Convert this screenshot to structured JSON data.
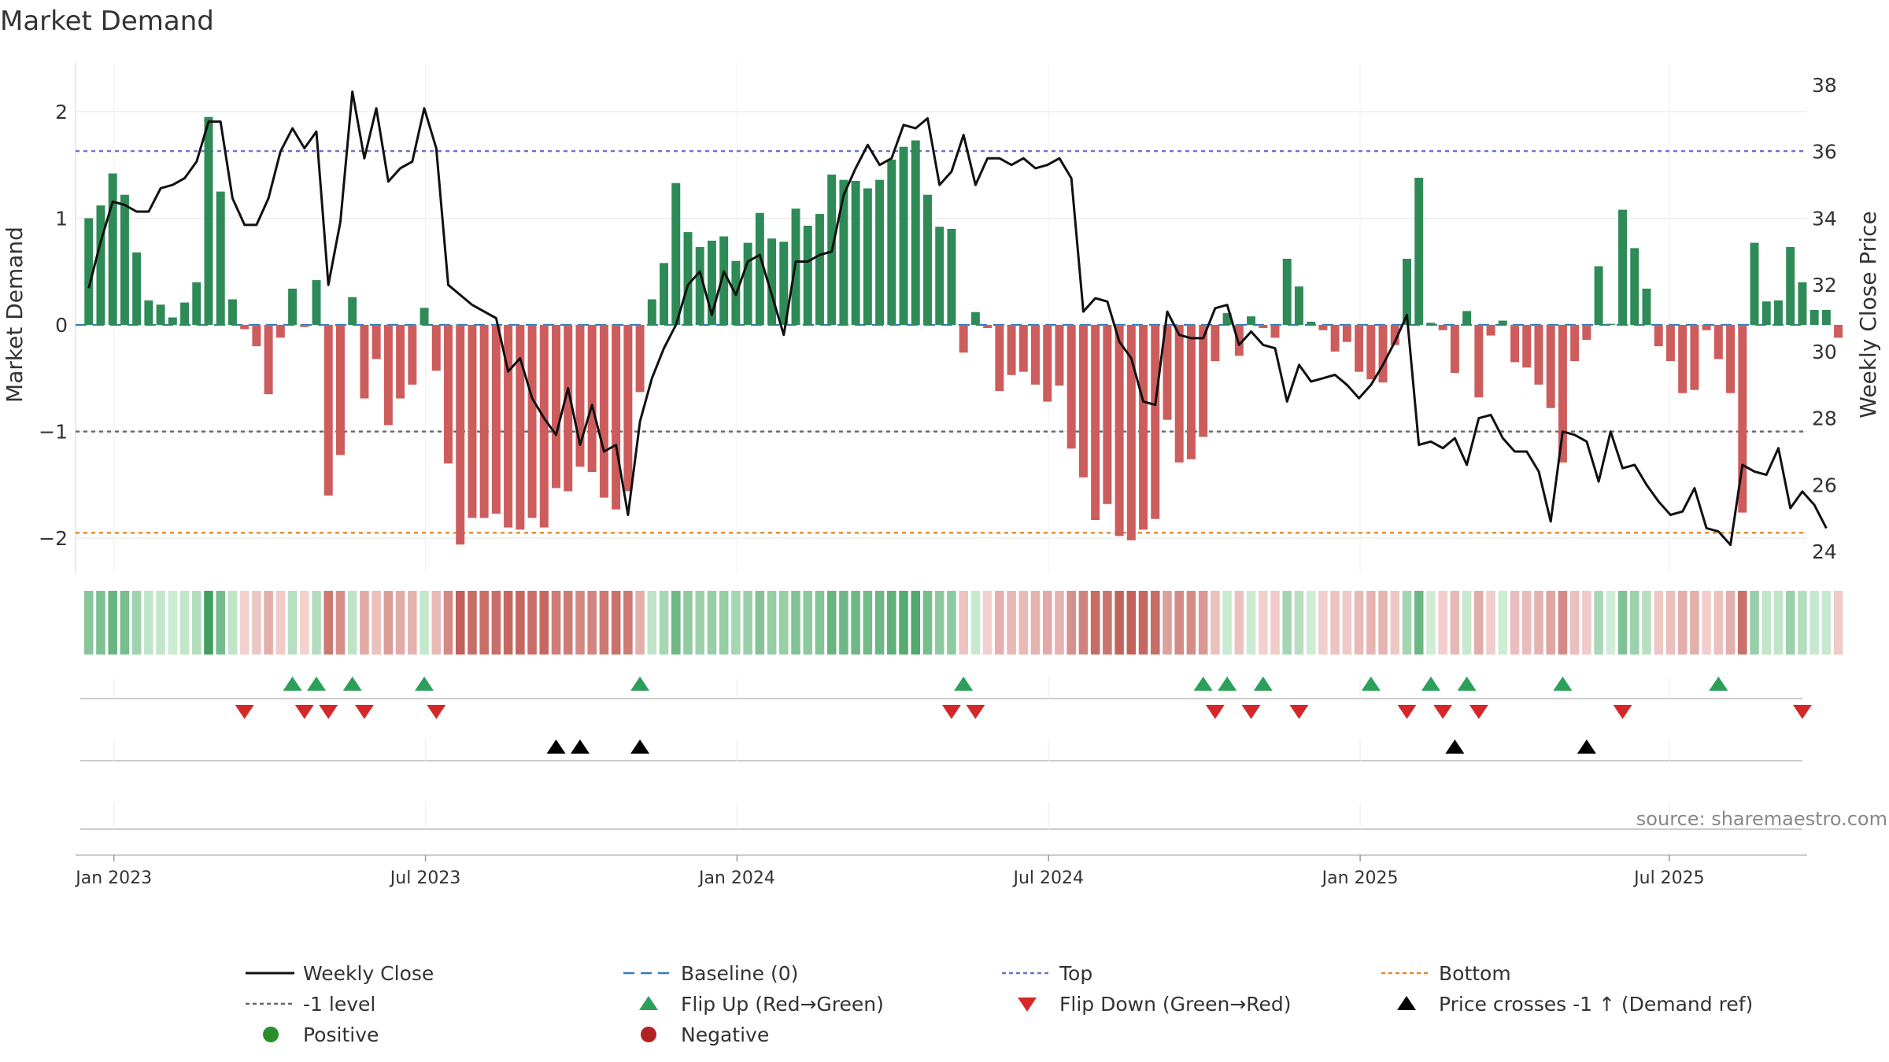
{
  "chart_data": {
    "type": "bar",
    "title": "Market Demand",
    "ylabel": "Market Demand",
    "y2label": "Weekly Close Price",
    "ylim": [
      -2.25,
      2.25
    ],
    "y2lim": [
      23.6,
      38.0
    ],
    "yticks": [
      2,
      1,
      0,
      -1,
      -2
    ],
    "yticklabels": [
      "2",
      "1",
      "0",
      "−1",
      "−2"
    ],
    "y2ticks": [
      38,
      36,
      34,
      32,
      30,
      28,
      26,
      24
    ],
    "y2ticklabels": [
      "38",
      "36",
      "34",
      "32",
      "30",
      "28",
      "26",
      "24"
    ],
    "x_week_range": [
      -1.1,
      143.4
    ],
    "xtick_weeks": [
      2.1,
      28.1,
      54.1,
      80.1,
      106.1,
      131.9
    ],
    "xticklabels": [
      "Jan 2023",
      "Jul 2023",
      "Jan 2024",
      "Jul 2024",
      "Jan 2025",
      "Jul 2025"
    ],
    "levels": {
      "top": 1.63,
      "minus_one": -1.0,
      "bottom": -1.95,
      "baseline": 0
    },
    "series": [
      {
        "name": "Market Demand",
        "type": "bar",
        "values": [
          1.0,
          1.12,
          1.42,
          1.22,
          0.68,
          0.23,
          0.19,
          0.07,
          0.21,
          0.4,
          1.95,
          1.25,
          0.24,
          -0.04,
          -0.2,
          -0.65,
          -0.12,
          0.34,
          -0.02,
          0.42,
          -1.6,
          -1.22,
          0.26,
          -0.69,
          -0.32,
          -0.94,
          -0.69,
          -0.56,
          0.16,
          -0.43,
          -1.3,
          -2.06,
          -1.81,
          -1.81,
          -1.77,
          -1.9,
          -1.92,
          -1.81,
          -1.9,
          -1.53,
          -1.56,
          -1.33,
          -1.38,
          -1.62,
          -1.73,
          -1.56,
          -0.63,
          0.24,
          0.58,
          1.33,
          0.87,
          0.73,
          0.79,
          0.83,
          0.6,
          0.77,
          1.05,
          0.81,
          0.78,
          1.09,
          0.93,
          1.04,
          1.41,
          1.36,
          1.35,
          1.28,
          1.36,
          1.55,
          1.67,
          1.73,
          1.22,
          0.92,
          0.9,
          -0.26,
          0.12,
          -0.03,
          -0.62,
          -0.47,
          -0.44,
          -0.56,
          -0.72,
          -0.57,
          -1.16,
          -1.43,
          -1.83,
          -1.68,
          -1.98,
          -2.02,
          -1.92,
          -1.82,
          -0.89,
          -1.29,
          -1.26,
          -1.05,
          -0.34,
          0.11,
          -0.29,
          0.08,
          -0.03,
          -0.12,
          0.62,
          0.36,
          0.03,
          -0.05,
          -0.25,
          -0.16,
          -0.44,
          -0.51,
          -0.54,
          -0.19,
          0.62,
          1.38,
          0.02,
          -0.05,
          -0.45,
          0.13,
          -0.68,
          -0.1,
          0.04,
          -0.35,
          -0.4,
          -0.56,
          -0.78,
          -1.29,
          -0.34,
          -0.14,
          0.55,
          0.01,
          1.08,
          0.72,
          0.34,
          -0.2,
          -0.34,
          -0.64,
          -0.61,
          -0.05,
          -0.32,
          -0.64,
          -1.76,
          0.77,
          0.22,
          0.23,
          0.73,
          0.4,
          0.14,
          0.14,
          -0.12
        ]
      },
      {
        "name": "Weekly Close",
        "type": "line",
        "axis": "right",
        "values": [
          31.9,
          33.3,
          34.5,
          34.4,
          34.2,
          34.2,
          34.9,
          35.0,
          35.2,
          35.7,
          36.9,
          36.9,
          34.6,
          33.8,
          33.8,
          34.6,
          36.0,
          36.7,
          36.1,
          36.6,
          32.0,
          33.9,
          37.8,
          35.8,
          37.3,
          35.1,
          35.5,
          35.7,
          37.3,
          36.1,
          32.0,
          31.7,
          31.4,
          31.2,
          31.0,
          29.4,
          29.8,
          28.6,
          28.0,
          27.5,
          28.9,
          27.2,
          28.4,
          27.0,
          27.2,
          25.1,
          27.9,
          29.2,
          30.1,
          30.8,
          32.0,
          32.4,
          31.1,
          32.4,
          31.7,
          32.7,
          32.9,
          31.7,
          30.5,
          32.7,
          32.7,
          32.9,
          33.0,
          34.7,
          35.5,
          36.2,
          35.6,
          35.8,
          36.8,
          36.7,
          37.0,
          35.0,
          35.4,
          36.5,
          35.0,
          35.8,
          35.8,
          35.6,
          35.8,
          35.5,
          35.6,
          35.8,
          35.2,
          31.2,
          31.6,
          31.5,
          30.3,
          29.8,
          28.5,
          28.4,
          31.2,
          30.5,
          30.4,
          30.4,
          31.3,
          31.4,
          30.2,
          30.6,
          30.2,
          30.1,
          28.5,
          29.6,
          29.1,
          29.2,
          29.3,
          29.0,
          28.6,
          29.0,
          29.6,
          30.3,
          31.1,
          27.2,
          27.3,
          27.1,
          27.4,
          26.6,
          28.0,
          28.1,
          27.4,
          27.0,
          27.0,
          26.4,
          24.9,
          27.6,
          27.5,
          27.3,
          26.1,
          27.6,
          26.5,
          26.6,
          26.0,
          25.5,
          25.1,
          25.2,
          25.9,
          24.7,
          24.6,
          24.2,
          26.6,
          26.4,
          26.3,
          27.1,
          25.3,
          25.8,
          25.4,
          24.7
        ]
      }
    ],
    "heat_strip": "Market Demand intensity (weekly)",
    "flip_up_weeks": [
      17,
      19,
      22,
      28,
      46,
      73,
      93,
      95,
      98,
      107,
      112,
      115,
      123,
      136
    ],
    "flip_down_weeks": [
      13,
      18,
      20,
      23,
      29,
      72,
      74,
      94,
      97,
      101,
      110,
      113,
      116,
      128,
      143
    ],
    "price_cross_weeks": [
      39,
      41,
      46,
      114,
      125
    ],
    "legend": [
      {
        "label": "Weekly Close",
        "marker": "line",
        "color": "#111111"
      },
      {
        "label": "Baseline (0)",
        "marker": "dash",
        "color": "#2f7dbf"
      },
      {
        "label": "Top",
        "marker": "dot",
        "color": "#6f6fd0"
      },
      {
        "label": "Bottom",
        "marker": "dot",
        "color": "#e08a2b"
      },
      {
        "label": "-1 level",
        "marker": "dot",
        "color": "#666666"
      },
      {
        "label": "Flip Up (Red→Green)",
        "marker": "up",
        "color": "#2ca05a"
      },
      {
        "label": "Flip Down (Green→Red)",
        "marker": "down",
        "color": "#d62728"
      },
      {
        "label": "Price crosses -1 ↑ (Demand ref)",
        "marker": "up",
        "color": "#000000"
      },
      {
        "label": "Positive",
        "marker": "circle",
        "color": "#2a8f2a"
      },
      {
        "label": "Negative",
        "marker": "circle",
        "color": "#b22222"
      }
    ],
    "source": "source: sharemaestro.com"
  },
  "colors": {
    "positive_bar": "#2e8b57",
    "negative_bar": "#cd5c5c",
    "price_line": "#111111",
    "top_line": "#6f6fd0",
    "bottom_line": "#e08a2b",
    "minus_one_line": "#666666",
    "baseline": "#2f7dbf",
    "flip_up": "#2ca05a",
    "flip_down": "#d62728",
    "price_cross": "#000000"
  }
}
